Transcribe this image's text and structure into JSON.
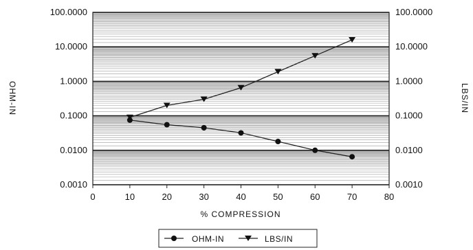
{
  "chart_data": {
    "type": "line",
    "xlabel": "% COMPRESSION",
    "ylabel_left": "OHM-IN",
    "ylabel_right": "LBS/IN",
    "x_ticks": [
      "0",
      "10",
      "20",
      "30",
      "40",
      "50",
      "60",
      "70",
      "80"
    ],
    "xlim": [
      0,
      80
    ],
    "y_scale": "log",
    "ylim": [
      0.001,
      100
    ],
    "y_ticks_left": [
      "100.0000",
      "10.0000",
      "1.0000",
      "0.1000",
      "0.0100",
      "0.0010"
    ],
    "y_ticks_right": [
      "100.0000",
      "10.0000",
      "1.0000",
      "0.1000",
      "0.0100",
      "0.0010"
    ],
    "grid": true,
    "legend_position": "bottom",
    "x": [
      10,
      20,
      30,
      40,
      50,
      60,
      70
    ],
    "series": [
      {
        "name": "OHM-IN",
        "marker": "circle",
        "axis": "left",
        "values": [
          0.075,
          0.055,
          0.045,
          0.032,
          0.018,
          0.01,
          0.0065
        ]
      },
      {
        "name": "LBS/IN",
        "marker": "triangle-down",
        "axis": "right",
        "values": [
          0.09,
          0.2,
          0.3,
          0.65,
          1.9,
          5.5,
          16
        ]
      }
    ]
  }
}
